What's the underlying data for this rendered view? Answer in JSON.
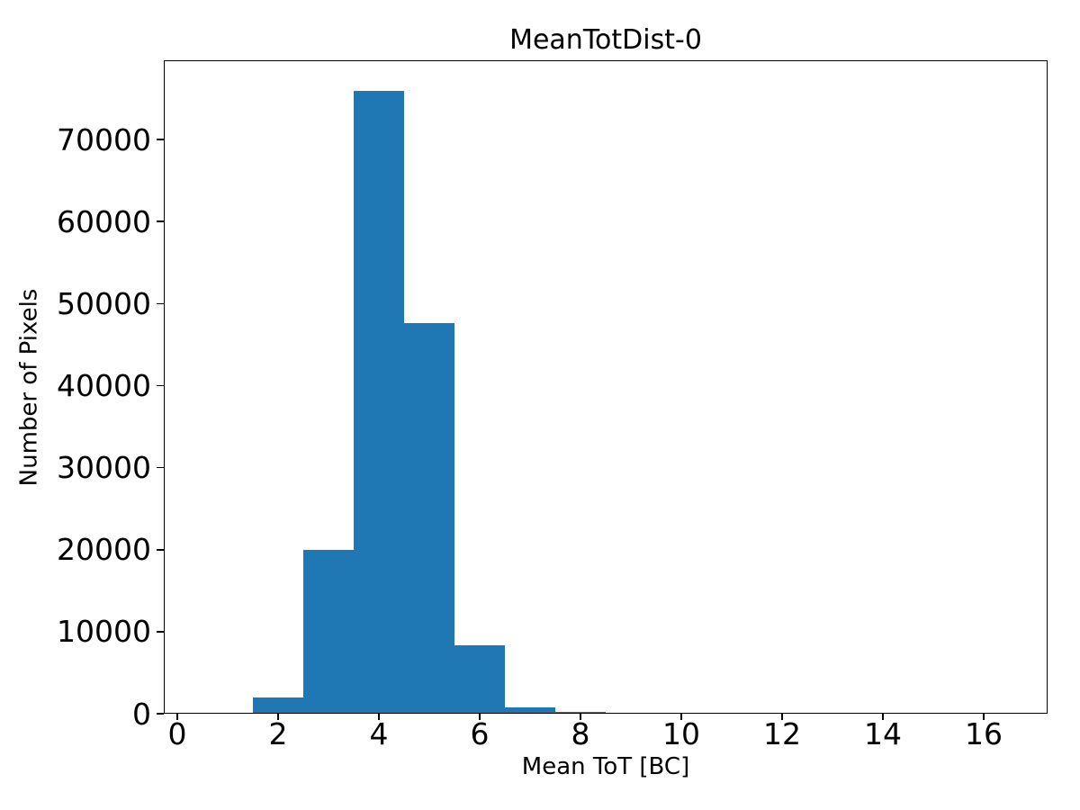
{
  "chart_data": {
    "type": "bar",
    "subtype": "histogram",
    "title": "MeanTotDist-0",
    "xlabel": "Mean ToT [BC]",
    "ylabel": "Number of Pixels",
    "bin_edges": [
      0.5,
      1.5,
      2.5,
      3.5,
      4.5,
      5.5,
      6.5,
      7.5,
      8.5,
      9.5,
      10.5,
      11.5,
      12.5,
      13.5,
      14.5,
      15.5,
      16.5
    ],
    "counts": [
      120,
      2000,
      20000,
      75900,
      47600,
      8300,
      770,
      220,
      0,
      0,
      0,
      0,
      0,
      0,
      0,
      0
    ],
    "x_ticks": [
      0,
      2,
      4,
      6,
      8,
      10,
      12,
      14,
      16
    ],
    "y_ticks": [
      0,
      10000,
      20000,
      30000,
      40000,
      50000,
      60000,
      70000
    ],
    "xlim": [
      -0.268,
      17.268
    ],
    "ylim": [
      0,
      79660
    ],
    "bar_color": "#1f77b4",
    "axis_color": "#000000",
    "background_color": "#ffffff",
    "grid": false,
    "legend": null
  }
}
